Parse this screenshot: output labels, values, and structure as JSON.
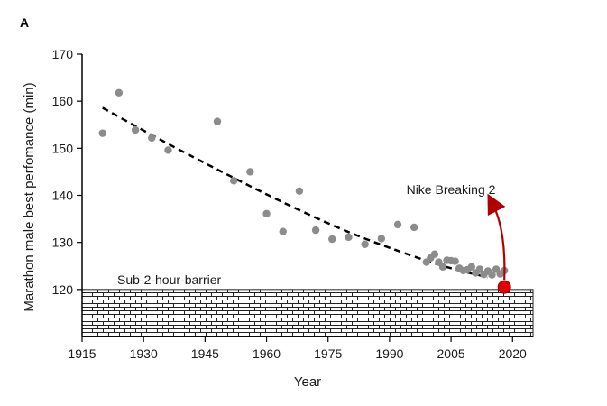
{
  "panel_label": "A",
  "chart_data": {
    "type": "scatter",
    "xlabel": "Year",
    "ylabel": "Marathon male best perfomance (min)",
    "xlim": [
      1915,
      2025
    ],
    "ylim": [
      110,
      170
    ],
    "xticks": [
      1915,
      1930,
      1945,
      1960,
      1975,
      1990,
      2005,
      2020
    ],
    "yticks": [
      120,
      130,
      140,
      150,
      160,
      170
    ],
    "series": [
      {
        "name": "Marathon male best performance",
        "marker": "circle",
        "color": "#8c8c8c",
        "points": [
          [
            1920,
            153.2
          ],
          [
            1924,
            161.8
          ],
          [
            1928,
            153.9
          ],
          [
            1932,
            152.2
          ],
          [
            1936,
            149.6
          ],
          [
            1948,
            155.7
          ],
          [
            1952,
            143.1
          ],
          [
            1956,
            145.0
          ],
          [
            1960,
            136.1
          ],
          [
            1964,
            132.3
          ],
          [
            1968,
            140.9
          ],
          [
            1972,
            132.6
          ],
          [
            1976,
            130.7
          ],
          [
            1980,
            131.1
          ],
          [
            1984,
            129.6
          ],
          [
            1988,
            130.8
          ],
          [
            1992,
            133.8
          ],
          [
            1996,
            133.2
          ],
          [
            1999,
            125.8
          ],
          [
            2000,
            126.7
          ],
          [
            2001,
            127.5
          ],
          [
            2002,
            125.8
          ],
          [
            2003,
            124.8
          ],
          [
            2004,
            126.2
          ],
          [
            2005,
            126.1
          ],
          [
            2006,
            126.0
          ],
          [
            2007,
            124.5
          ],
          [
            2008,
            124.0
          ],
          [
            2009,
            124.2
          ],
          [
            2010,
            124.8
          ],
          [
            2011,
            123.5
          ],
          [
            2012,
            124.3
          ],
          [
            2013,
            123.2
          ],
          [
            2014,
            123.9
          ],
          [
            2015,
            123.1
          ],
          [
            2016,
            124.3
          ],
          [
            2017,
            123.3
          ],
          [
            2018,
            124.0
          ]
        ]
      }
    ],
    "trendline": {
      "style": "dashed",
      "color": "#000000",
      "points": [
        [
          1920,
          158.6
        ],
        [
          1935,
          151.4
        ],
        [
          1950,
          144.6
        ],
        [
          1965,
          138.1
        ],
        [
          1980,
          132.2
        ],
        [
          1995,
          127.3
        ],
        [
          2005,
          124.5
        ],
        [
          2014,
          122.6
        ]
      ]
    },
    "highlight": {
      "x": 2018,
      "y": 120.5,
      "color": "#e00000",
      "arrow_to": [
        2015,
        138.5
      ],
      "label": "Nike Breaking 2"
    },
    "barrier": {
      "y_top": 120,
      "label": "Sub-2-hour-barrier",
      "pattern": "brick"
    }
  }
}
